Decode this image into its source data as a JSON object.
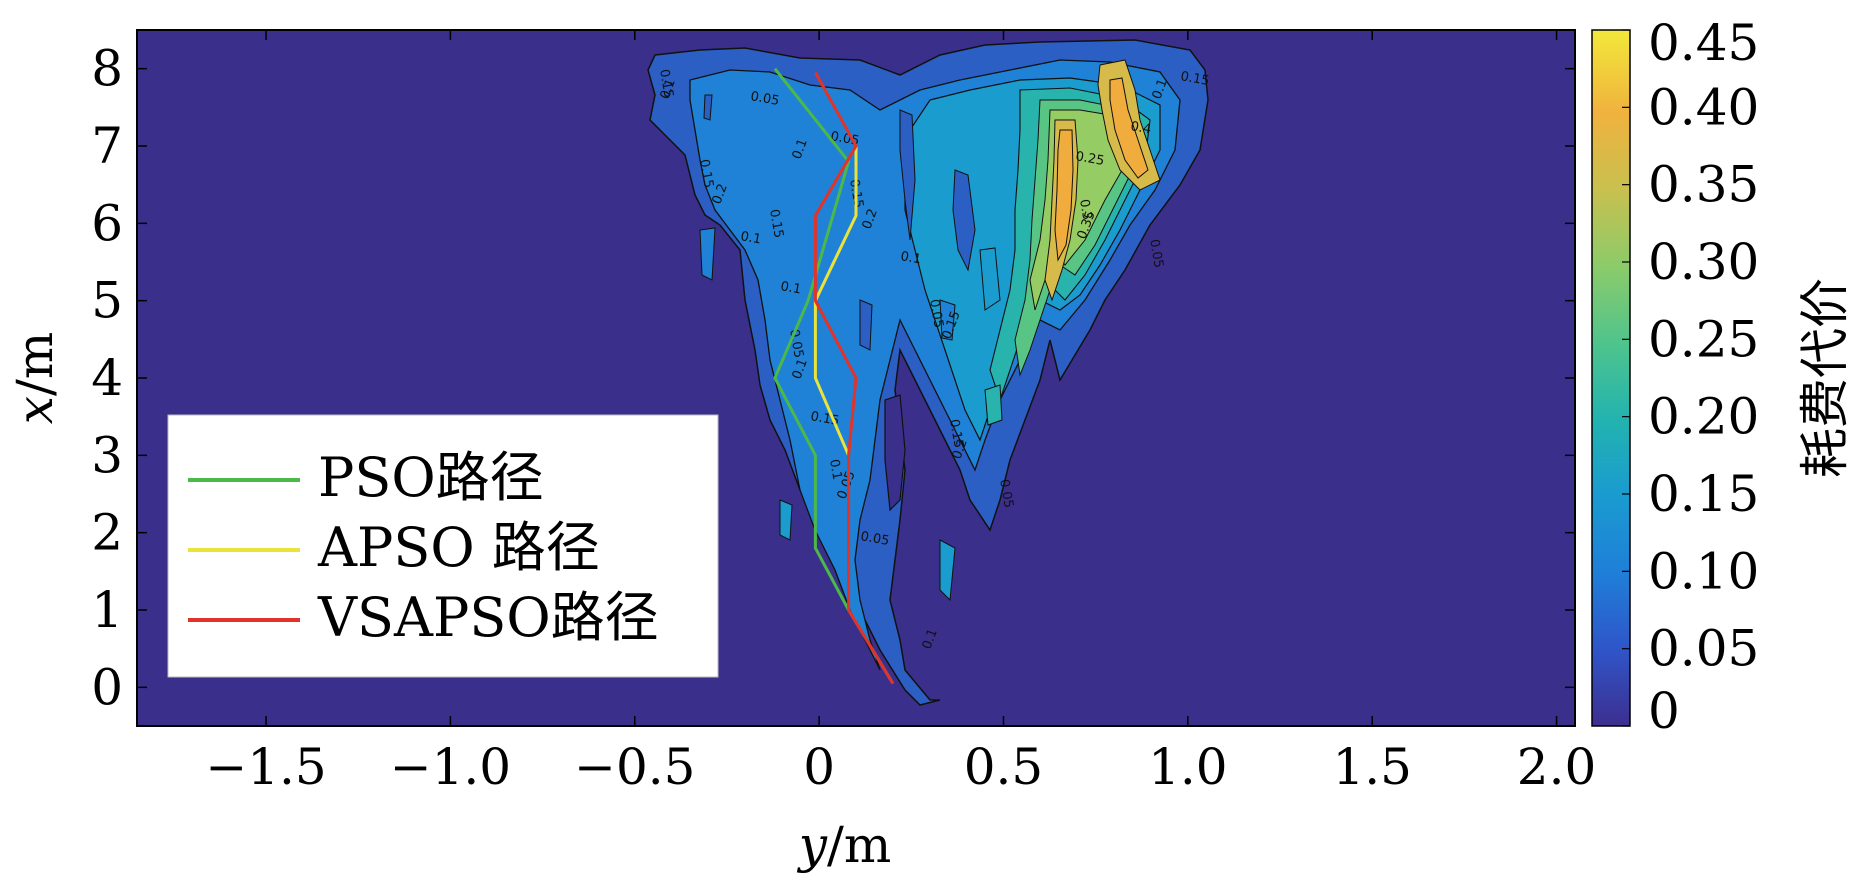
{
  "chart_data": {
    "type": "contour",
    "xlabel_var": "y",
    "xlabel_unit": "/m",
    "ylabel_var": "x",
    "ylabel_unit": "/m",
    "xlim": [
      -1.85,
      2.05
    ],
    "ylim": [
      -0.5,
      8.5
    ],
    "x_ticks": [
      -1.5,
      -1.0,
      -0.5,
      0,
      0.5,
      1.0,
      1.5,
      2.0
    ],
    "x_tick_labels": [
      "−1.5",
      "−1.0",
      "−0.5",
      "0",
      "0.5",
      "1.0",
      "1.5",
      "2.0"
    ],
    "y_ticks": [
      0,
      1,
      2,
      3,
      4,
      5,
      6,
      7,
      8
    ],
    "y_tick_labels": [
      "0",
      "1",
      "2",
      "3",
      "4",
      "5",
      "6",
      "7",
      "8"
    ],
    "colorbar": {
      "label": "耗费代价",
      "range": [
        0,
        0.45
      ],
      "ticks": [
        0,
        0.05,
        0.1,
        0.15,
        0.2,
        0.25,
        0.3,
        0.35,
        0.4,
        0.45
      ],
      "tick_labels": [
        "0",
        "0.05",
        "0.10",
        "0.15",
        "0.20",
        "0.25",
        "0.30",
        "0.35",
        "0.40",
        "0.45"
      ],
      "colors": [
        "#3d2f8f",
        "#2f55c9",
        "#1f7fd8",
        "#1a9bd0",
        "#22b3b0",
        "#4fc48c",
        "#8ccb6a",
        "#c8c04f",
        "#f0b23e",
        "#f2e83a"
      ]
    },
    "background_color": "#3b2f8c",
    "contour_levels": [
      0.05,
      0.1,
      0.15,
      0.2,
      0.25,
      0.3,
      0.35,
      0.4
    ],
    "contour_label_samples": [
      "0.15",
      "0.1",
      "0.05",
      "0.15",
      "0.2",
      "0.1",
      "0.15",
      "0.1",
      "0.05",
      "0.15",
      "0.2",
      "0.1",
      "0.05",
      "0.15",
      "0.1",
      "0.05",
      "0.1",
      "0.15",
      "0.1",
      "0.05",
      "0.05",
      "0.15",
      "0.2",
      "0.25",
      "0.3",
      "0.35",
      "0.4",
      "0.05",
      "0.1",
      "0.15",
      "0.05",
      "0.1"
    ],
    "legend": {
      "position": "bottom-left"
    },
    "series": [
      {
        "name": "PSO路径",
        "color": "#4cb84a",
        "points": [
          [
            -0.12,
            8.0
          ],
          [
            0.08,
            6.8
          ],
          [
            -0.03,
            5.0
          ],
          [
            -0.12,
            4.0
          ],
          [
            -0.01,
            3.0
          ],
          [
            -0.01,
            1.8
          ],
          [
            0.08,
            1.0
          ],
          [
            0.2,
            0.05
          ]
        ]
      },
      {
        "name": "APSO 路径",
        "color": "#e9e33a",
        "points": [
          [
            0.1,
            7.0
          ],
          [
            0.1,
            6.1
          ],
          [
            -0.01,
            5.0
          ],
          [
            -0.01,
            4.0
          ],
          [
            0.08,
            3.0
          ]
        ]
      },
      {
        "name": "VSAPSO路径",
        "color": "#e2332a",
        "points": [
          [
            -0.01,
            7.95
          ],
          [
            0.1,
            7.0
          ],
          [
            -0.01,
            6.1
          ],
          [
            -0.01,
            5.0
          ],
          [
            0.1,
            4.0
          ],
          [
            0.08,
            3.0
          ],
          [
            0.08,
            1.0
          ],
          [
            0.2,
            0.05
          ]
        ]
      }
    ]
  }
}
